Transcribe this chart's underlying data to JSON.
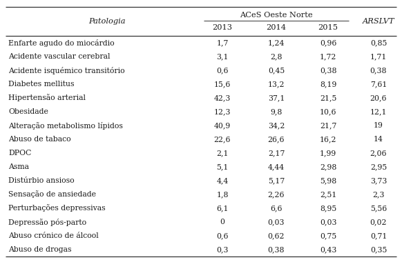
{
  "col_header_top": "ACeS Oeste Norte",
  "col_header_sub": [
    "2013",
    "2014",
    "2015"
  ],
  "col_header_right": "ARSLVT",
  "col_header_left": "Patologia",
  "rows": [
    [
      "Enfarte agudo do miocárdio",
      "1,7",
      "1,24",
      "0,96",
      "0,85"
    ],
    [
      "Acidente vascular cerebral",
      "3,1",
      "2,8",
      "1,72",
      "1,71"
    ],
    [
      "Acidente isquémico transitório",
      "0,6",
      "0,45",
      "0,38",
      "0,38"
    ],
    [
      "Diabetes mellitus",
      "15,6",
      "13,2",
      "8,19",
      "7,61"
    ],
    [
      "Hipertensão arterial",
      "42,3",
      "37,1",
      "21,5",
      "20,6"
    ],
    [
      "Obesidade",
      "12,3",
      "9,8",
      "10,6",
      "12,1"
    ],
    [
      "Alteração metabolismo lípidos",
      "40,9",
      "34,2",
      "21,7",
      "19"
    ],
    [
      "Abuso de tabaco",
      "22,6",
      "26,6",
      "16,2",
      "14"
    ],
    [
      "DPOC",
      "2,1",
      "2,17",
      "1,99",
      "2,06"
    ],
    [
      "Asma",
      "5,1",
      "4,44",
      "2,98",
      "2,95"
    ],
    [
      "Distúrbio ansioso",
      "4,4",
      "5,17",
      "5,98",
      "3,73"
    ],
    [
      "Sensação de ansiedade",
      "1,8",
      "2,26",
      "2,51",
      "2,3"
    ],
    [
      "Perturbações depressivas",
      "6,1",
      "6,6",
      "8,95",
      "5,56"
    ],
    [
      "Depressão pós-parto",
      "0",
      "0,03",
      "0,03",
      "0,02"
    ],
    [
      "Abuso crónico de álcool",
      "0,6",
      "0,62",
      "0,75",
      "0,71"
    ],
    [
      "Abuso de drogas",
      "0,3",
      "0,38",
      "0,43",
      "0,35"
    ]
  ],
  "bg_color": "#ffffff",
  "text_color": "#1a1a1a",
  "line_color": "#333333",
  "font_size": 7.8,
  "header_font_size": 8.2,
  "fig_width": 5.82,
  "fig_height": 3.8,
  "dpi": 100
}
